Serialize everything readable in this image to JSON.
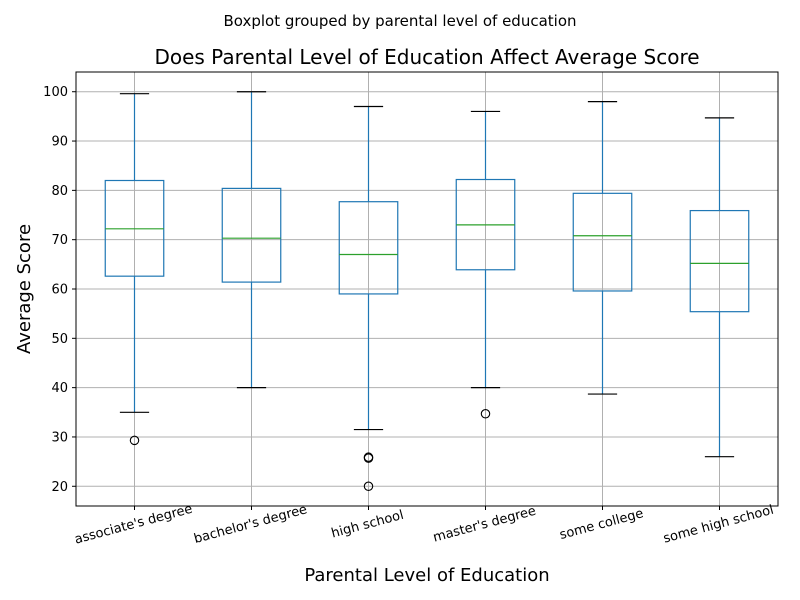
{
  "chart_data": {
    "type": "box",
    "suptitle": "Boxplot grouped by parental level of education",
    "title": "Does Parental Level of Education Affect Average Score",
    "xlabel": "Parental Level of Education",
    "ylabel": "Average Score",
    "ylim": [
      16,
      104
    ],
    "yticks": [
      20,
      30,
      40,
      50,
      60,
      70,
      80,
      90,
      100
    ],
    "grid": true,
    "categories": [
      "associate's degree",
      "bachelor's degree",
      "high school",
      "master's degree",
      "some college",
      "some high school"
    ],
    "boxes": [
      {
        "whisker_low": 35.0,
        "q1": 62.6,
        "median": 72.2,
        "q3": 82.0,
        "whisker_high": 99.6,
        "outliers": [
          29.3
        ]
      },
      {
        "whisker_low": 40.0,
        "q1": 61.4,
        "median": 70.3,
        "q3": 80.4,
        "whisker_high": 100.0,
        "outliers": []
      },
      {
        "whisker_low": 31.5,
        "q1": 59.0,
        "median": 67.0,
        "q3": 77.7,
        "whisker_high": 97.0,
        "outliers": [
          25.7,
          25.9,
          20.0
        ]
      },
      {
        "whisker_low": 40.0,
        "q1": 63.9,
        "median": 73.0,
        "q3": 82.2,
        "whisker_high": 96.0,
        "outliers": [
          34.7
        ]
      },
      {
        "whisker_low": 38.7,
        "q1": 59.6,
        "median": 70.8,
        "q3": 79.4,
        "whisker_high": 98.0,
        "outliers": []
      },
      {
        "whisker_low": 26.0,
        "q1": 55.4,
        "median": 65.2,
        "q3": 75.9,
        "whisker_high": 94.7,
        "outliers": []
      }
    ],
    "colors": {
      "box": "#1f77b4",
      "median": "#2ca02c",
      "whisker_cap": "#000000",
      "outlier": "#000000",
      "grid": "#b0b0b0"
    }
  }
}
